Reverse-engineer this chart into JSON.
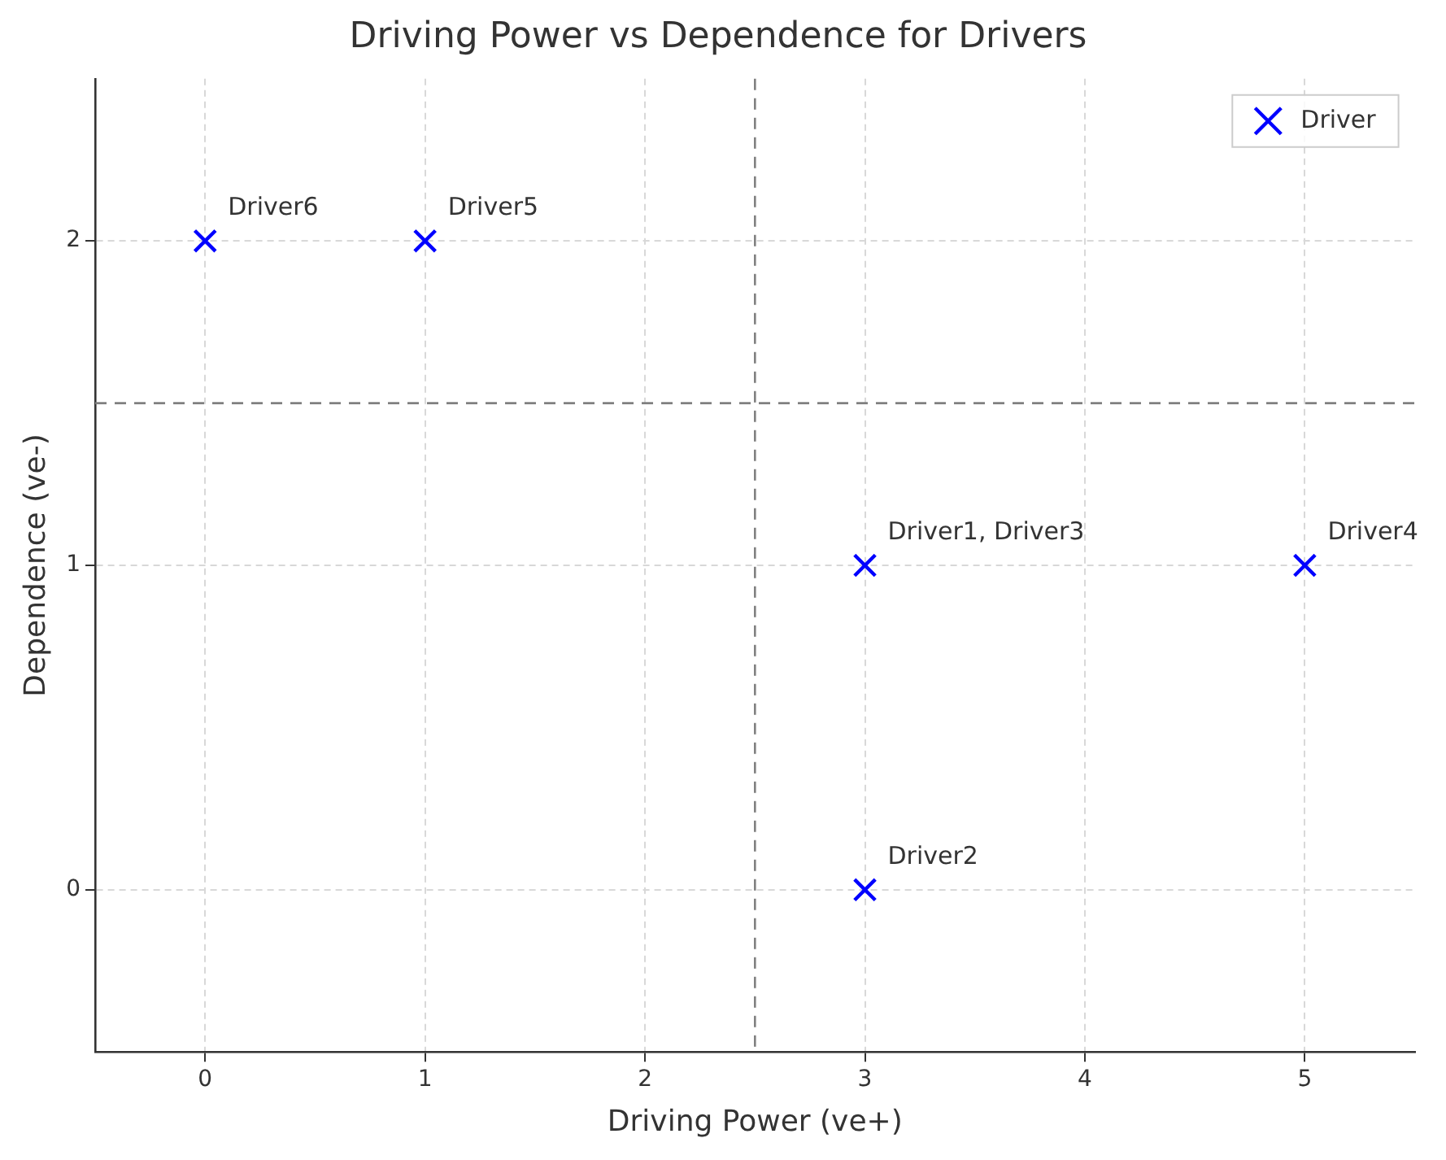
{
  "chart_data": {
    "type": "scatter",
    "title": "Driving Power vs Dependence for Drivers",
    "xlabel": "Driving Power (ve+)",
    "ylabel": "Dependence (ve-)",
    "series": [
      {
        "name": "Driver",
        "color": "#0000ff",
        "x": [
          3,
          3,
          5,
          1,
          0
        ],
        "values": [
          1,
          0,
          1,
          2,
          2
        ]
      }
    ],
    "xlim": [
      -0.5,
      5.5
    ],
    "xticks": [
      0,
      1,
      2,
      3,
      4,
      5
    ],
    "ylim": [
      -0.5,
      2.5
    ],
    "yticks": [
      0,
      1,
      2
    ],
    "ref_lines": [
      {
        "axis": "x",
        "value": 2.5,
        "color": "#808080",
        "line_style": "dashed"
      },
      {
        "axis": "y",
        "value": 1.5,
        "color": "#808080",
        "line_style": "dashed"
      }
    ],
    "annotations": [
      {
        "text": "Driver1, Driver3",
        "x": 3,
        "y": 1
      },
      {
        "text": "Driver2",
        "x": 3,
        "y": 0
      },
      {
        "text": "Driver4",
        "x": 5,
        "y": 1
      },
      {
        "text": "Driver5",
        "x": 1,
        "y": 2
      },
      {
        "text": "Driver6",
        "x": 0,
        "y": 2
      }
    ],
    "grid": true,
    "legend": "top right",
    "marker": "cross"
  }
}
